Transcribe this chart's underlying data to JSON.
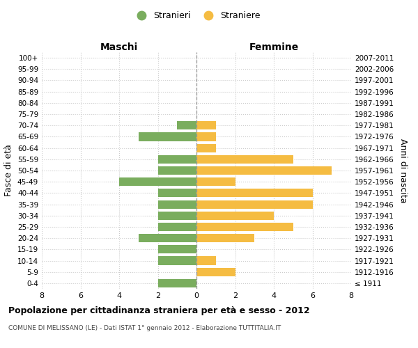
{
  "age_groups": [
    "100+",
    "95-99",
    "90-94",
    "85-89",
    "80-84",
    "75-79",
    "70-74",
    "65-69",
    "60-64",
    "55-59",
    "50-54",
    "45-49",
    "40-44",
    "35-39",
    "30-34",
    "25-29",
    "20-24",
    "15-19",
    "10-14",
    "5-9",
    "0-4"
  ],
  "birth_years": [
    "≤ 1911",
    "1912-1916",
    "1917-1921",
    "1922-1926",
    "1927-1931",
    "1932-1936",
    "1937-1941",
    "1942-1946",
    "1947-1951",
    "1952-1956",
    "1957-1961",
    "1962-1966",
    "1967-1971",
    "1972-1976",
    "1977-1981",
    "1982-1986",
    "1987-1991",
    "1992-1996",
    "1997-2001",
    "2002-2006",
    "2007-2011"
  ],
  "males": [
    0,
    0,
    0,
    0,
    0,
    0,
    1,
    3,
    0,
    2,
    2,
    4,
    2,
    2,
    2,
    2,
    3,
    2,
    2,
    0,
    2
  ],
  "females": [
    0,
    0,
    0,
    0,
    0,
    0,
    1,
    1,
    1,
    5,
    7,
    2,
    6,
    6,
    4,
    5,
    3,
    0,
    1,
    2,
    0
  ],
  "male_color": "#7aad5e",
  "female_color": "#f5bc42",
  "title": "Popolazione per cittadinanza straniera per età e sesso - 2012",
  "subtitle": "COMUNE DI MELISSANO (LE) - Dati ISTAT 1° gennaio 2012 - Elaborazione TUTTITALIA.IT",
  "xlabel_left": "Maschi",
  "xlabel_right": "Femmine",
  "ylabel": "Fasce di età",
  "ylabel_right": "Anni di nascita",
  "legend_male": "Stranieri",
  "legend_female": "Straniere",
  "xlim": 8,
  "background_color": "#ffffff",
  "grid_color": "#cccccc"
}
